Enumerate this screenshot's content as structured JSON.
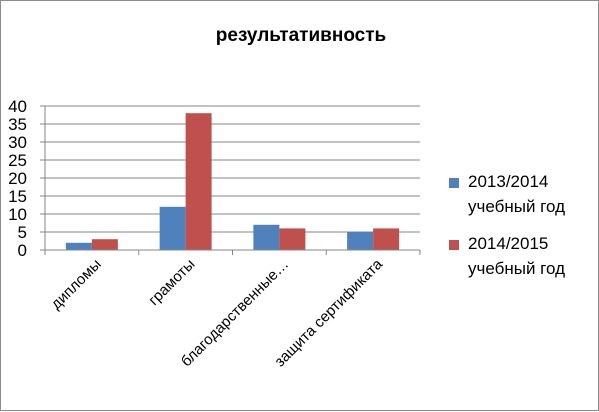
{
  "chart_data": {
    "type": "bar",
    "title": "результативность",
    "categories": [
      "дипломы",
      "грамоты",
      "благодарственные…",
      "защита сертификата"
    ],
    "series": [
      {
        "name": "2013/2014 учебный год",
        "name_lines": [
          "2013/2014",
          "учебный год"
        ],
        "color": "#4f81bd",
        "values": [
          2,
          12,
          7,
          5
        ]
      },
      {
        "name": "2014/2015 учебный год",
        "name_lines": [
          "2014/2015",
          "учебный год"
        ],
        "color": "#c0504d",
        "values": [
          3,
          38,
          6,
          6
        ]
      }
    ],
    "yticks": [
      "0",
      "5",
      "10",
      "15",
      "20",
      "25",
      "30",
      "35",
      "40"
    ],
    "ylim": [
      0,
      40
    ],
    "xlabel": "",
    "ylabel": "",
    "grid": true,
    "legend_position": "right"
  }
}
